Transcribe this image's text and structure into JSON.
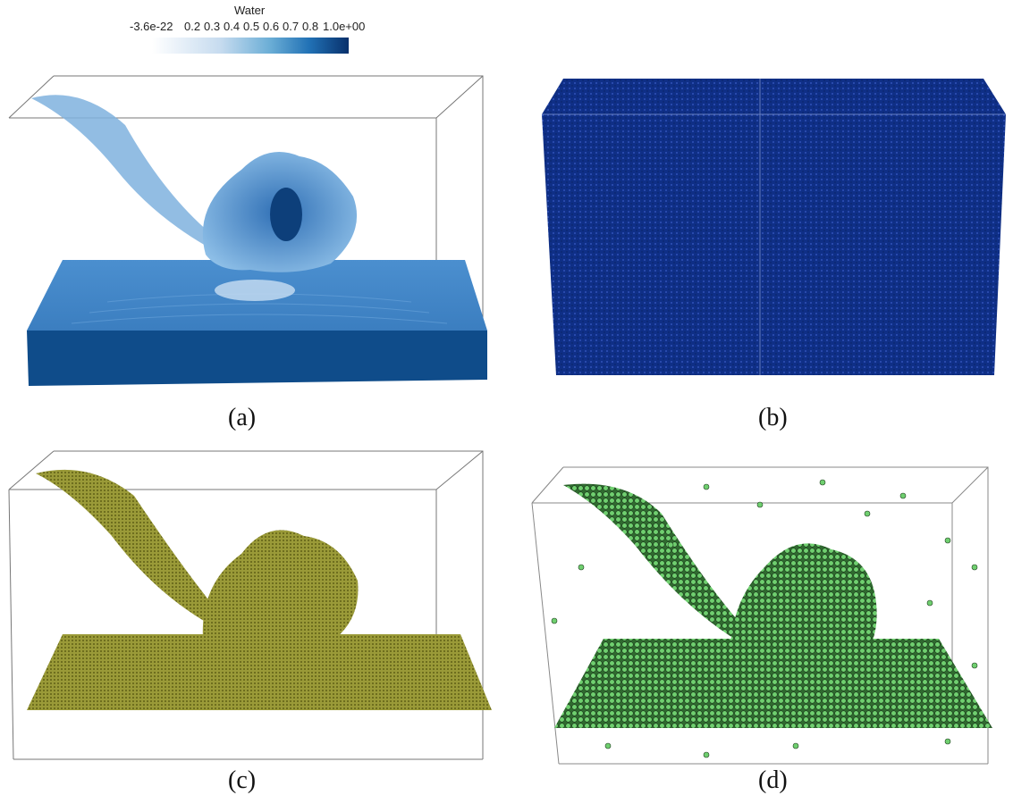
{
  "colorbar": {
    "title": "Water",
    "ticks": [
      "-3.6e-22",
      "0.2",
      "0.3",
      "0.4",
      "0.5",
      "0.6",
      "0.7",
      "0.8",
      "1.0e+00"
    ],
    "color_low": "#ffffff",
    "color_high": "#08306b"
  },
  "panels": [
    {
      "id": "a",
      "caption": "(a)"
    },
    {
      "id": "b",
      "caption": "(b)"
    },
    {
      "id": "c",
      "caption": "(c)"
    },
    {
      "id": "d",
      "caption": "(d)"
    }
  ],
  "colors": {
    "water_light": "#7fb2de",
    "water_mid": "#3f83c4",
    "water_dark": "#0d3f7a",
    "particle_blue": "#0b2f8a",
    "voxel_olive": "#8a8a2a",
    "particle_green": "#5fbf5f"
  }
}
